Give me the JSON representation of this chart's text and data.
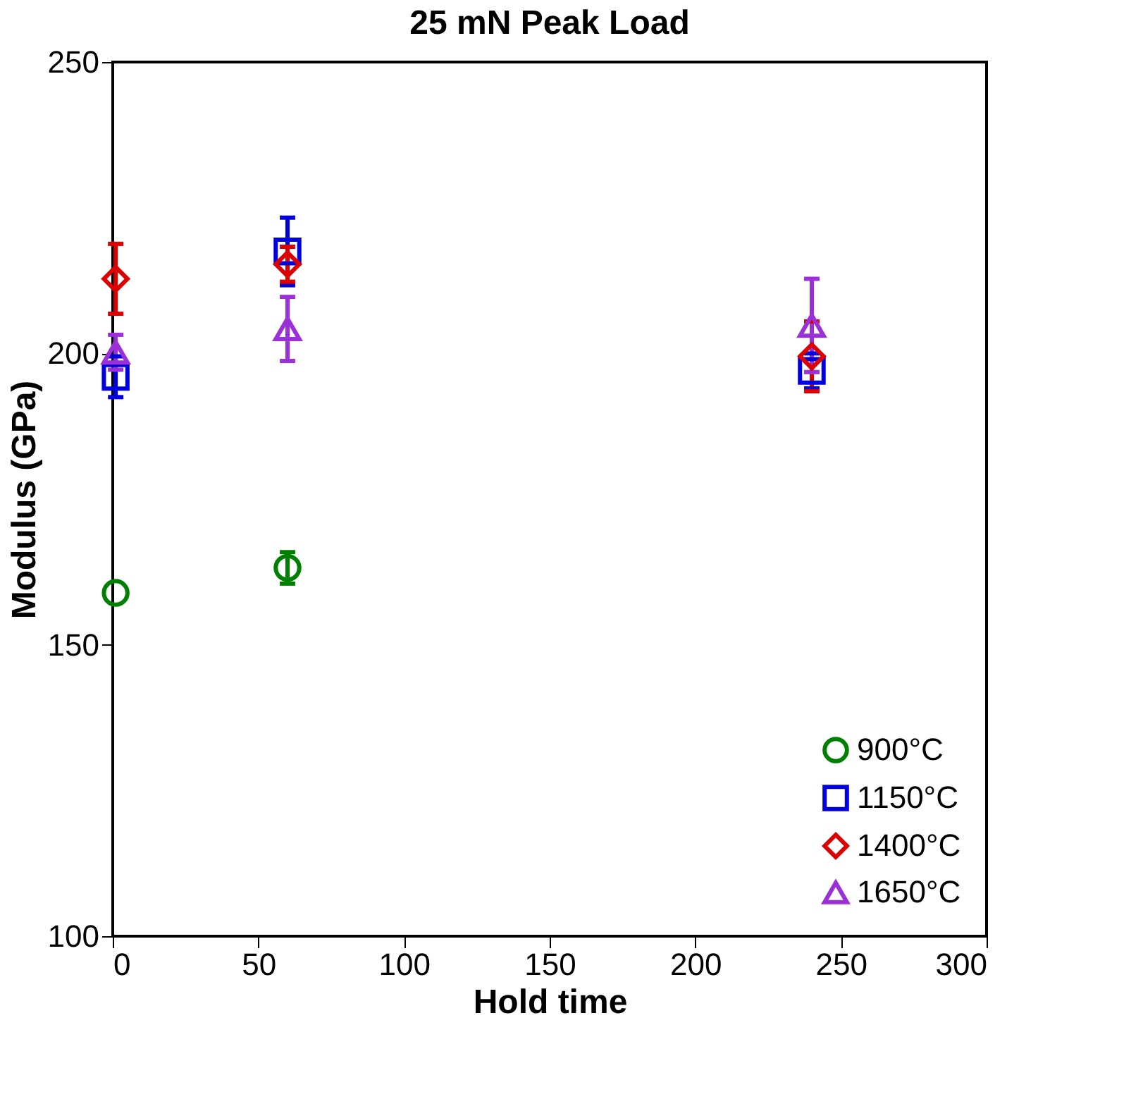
{
  "chart_data": {
    "type": "scatter",
    "title": "25 mN Peak Load",
    "xlabel": "Hold time",
    "ylabel": "Modulus (GPa)",
    "x": [
      1,
      60,
      240
    ],
    "series": [
      {
        "name": "900°C",
        "color": "#008000",
        "marker": "circle",
        "values": [
          158.9,
          163.2,
          null
        ],
        "errors": [
          null,
          2.7,
          null
        ]
      },
      {
        "name": "1150°C",
        "color": "#0000dd",
        "marker": "square",
        "values": [
          196,
          217.5,
          197
        ],
        "errors": [
          3.5,
          5.8,
          3
        ]
      },
      {
        "name": "1400°C",
        "color": "#dd0000",
        "marker": "diamond",
        "values": [
          212.8,
          215.3,
          199.5
        ],
        "errors": [
          6,
          3,
          6
        ]
      },
      {
        "name": "1650°C",
        "color": "#9b30d9",
        "marker": "triangle",
        "values": [
          200.2,
          204.2,
          204.8
        ],
        "errors": [
          3,
          5.5,
          8
        ]
      }
    ],
    "xlim": [
      0,
      300
    ],
    "xticks": [
      0,
      50,
      100,
      150,
      200,
      250,
      300
    ],
    "ylim": [
      100,
      250
    ],
    "yticks": [
      100,
      150,
      200,
      250
    ],
    "grid": false,
    "legend": "bottom right"
  }
}
